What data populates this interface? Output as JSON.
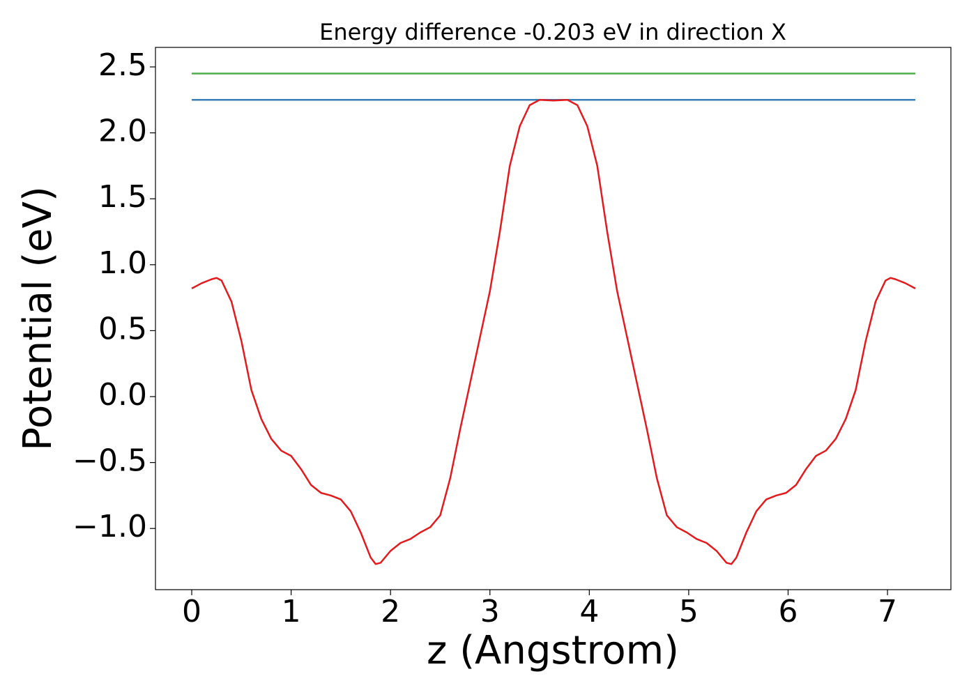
{
  "chart_data": {
    "type": "line",
    "title": "Energy difference -0.203 eV in direction X",
    "xlabel": "z (Angstrom)",
    "ylabel": "Potential (eV)",
    "xlim": [
      -0.365,
      7.638
    ],
    "ylim": [
      -1.464,
      2.648
    ],
    "xticks": [
      0,
      1,
      2,
      3,
      4,
      5,
      6,
      7
    ],
    "yticks": [
      {
        "value": -1.0,
        "label": "−1.0"
      },
      {
        "value": -0.5,
        "label": "−0.5"
      },
      {
        "value": 0,
        "label": "0.0"
      },
      0.5,
      {
        "value": 1.0,
        "label": "1.0"
      },
      1.5,
      {
        "value": 2.0,
        "label": "2.0"
      },
      2.5
    ],
    "grid": false,
    "series": [
      {
        "color": "#4daf4a",
        "x": [
          0,
          7.28
        ],
        "values": [
          2.45,
          2.45
        ]
      },
      {
        "color": "#377eb8",
        "x": [
          0,
          7.28
        ],
        "values": [
          2.25,
          2.25
        ]
      },
      {
        "color": "#e41a1c",
        "x": [
          0,
          0.1,
          0.2,
          0.25,
          0.3,
          0.4,
          0.5,
          0.6,
          0.7,
          0.8,
          0.9,
          1.0,
          1.1,
          1.2,
          1.3,
          1.4,
          1.5,
          1.6,
          1.7,
          1.8,
          1.85,
          1.9,
          2.0,
          2.1,
          2.2,
          2.3,
          2.4,
          2.5,
          2.6,
          2.7,
          2.8,
          2.9,
          3.0,
          3.1,
          3.2,
          3.3,
          3.4,
          3.5,
          3.64,
          3.78,
          3.88,
          3.98,
          4.08,
          4.18,
          4.28,
          4.38,
          4.48,
          4.58,
          4.68,
          4.78,
          4.88,
          4.98,
          5.08,
          5.18,
          5.28,
          5.38,
          5.43,
          5.48,
          5.58,
          5.68,
          5.78,
          5.88,
          5.98,
          6.08,
          6.18,
          6.28,
          6.38,
          6.48,
          6.58,
          6.68,
          6.78,
          6.88,
          6.98,
          7.03,
          7.08,
          7.18,
          7.28
        ],
        "values": [
          0.82,
          0.86,
          0.89,
          0.9,
          0.88,
          0.72,
          0.42,
          0.05,
          -0.17,
          -0.32,
          -0.41,
          -0.45,
          -0.55,
          -0.67,
          -0.73,
          -0.75,
          -0.78,
          -0.87,
          -1.03,
          -1.22,
          -1.27,
          -1.26,
          -1.17,
          -1.11,
          -1.08,
          -1.03,
          -0.99,
          -0.9,
          -0.62,
          -0.25,
          0.1,
          0.45,
          0.8,
          1.25,
          1.75,
          2.05,
          2.21,
          2.25,
          2.245,
          2.25,
          2.21,
          2.05,
          1.75,
          1.25,
          0.8,
          0.45,
          0.1,
          -0.25,
          -0.62,
          -0.9,
          -0.99,
          -1.03,
          -1.08,
          -1.11,
          -1.17,
          -1.26,
          -1.27,
          -1.22,
          -1.03,
          -0.87,
          -0.78,
          -0.75,
          -0.73,
          -0.67,
          -0.55,
          -0.45,
          -0.41,
          -0.32,
          -0.17,
          0.05,
          0.42,
          0.72,
          0.88,
          0.9,
          0.89,
          0.86,
          0.82
        ]
      }
    ]
  }
}
